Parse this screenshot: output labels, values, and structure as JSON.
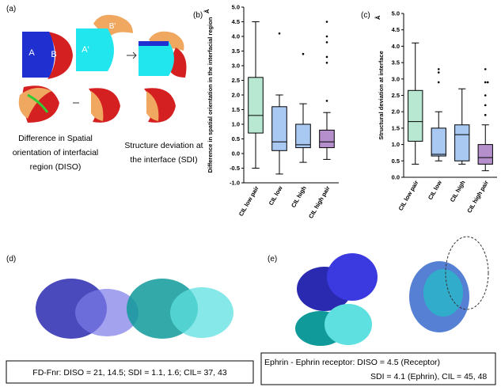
{
  "panel_labels": [
    "(a)",
    "(b)",
    "(c)",
    "(d)",
    "(e)"
  ],
  "panel_a": {
    "chain_labels": [
      "A",
      "B",
      "A'",
      "B'"
    ],
    "diso_caption": [
      "Difference in Spatial",
      "orientation of interfacial",
      "region (DISO)"
    ],
    "sdi_caption": [
      "Structure deviation at",
      "the interface (SDI)"
    ]
  },
  "panel_d": {
    "caption": "FD-Fnr: DISO = 21, 14.5; SDI = 1.1, 1.6; CIL= 37, 43"
  },
  "panel_e": {
    "caption": [
      "Ephrin - Ephrin receptor: DISO =  4.5 (Receptor)",
      "SDI = 4.1 (Ephrin), CIL = 45, 48"
    ]
  },
  "chart_data": [
    {
      "type": "box",
      "y_label": "Difference in spatial orientation in the interfacial region",
      "y_unit": "Å",
      "categories": [
        "CIL low pair",
        "CIL low",
        "CIL high",
        "CIL high pair"
      ],
      "colors": [
        "#b8e8d2",
        "#a9c8f2",
        "#a9c8f2",
        "#b48fcb"
      ],
      "boxes": [
        {
          "whislo": -0.5,
          "q1": 0.7,
          "med": 1.3,
          "q3": 2.6,
          "whishi": 4.5,
          "fliers": []
        },
        {
          "whislo": -0.7,
          "q1": 0.1,
          "med": 0.4,
          "q3": 1.6,
          "whishi": 2.0,
          "fliers": [
            4.1
          ]
        },
        {
          "whislo": -0.3,
          "q1": 0.2,
          "med": 0.3,
          "q3": 1.0,
          "whishi": 1.7,
          "fliers": [
            3.4
          ]
        },
        {
          "whislo": -0.2,
          "q1": 0.2,
          "med": 0.4,
          "q3": 0.8,
          "whishi": 1.4,
          "fliers": [
            1.8,
            3.1,
            3.3,
            3.8,
            4.0,
            4.5
          ]
        }
      ],
      "ylim": [
        -1.0,
        5.0
      ],
      "yticks": [
        {
          "value": 5,
          "label": "5.0"
        },
        4.5,
        {
          "value": 4,
          "label": "4.0"
        },
        3.5,
        {
          "value": 3,
          "label": "3.0"
        },
        2.5,
        {
          "value": 2,
          "label": "2.0"
        },
        1.5,
        {
          "value": 1,
          "label": "1.0"
        },
        0.5,
        {
          "value": 0,
          "label": "0.0"
        },
        -0.5,
        {
          "value": -1,
          "label": "-1.0"
        }
      ]
    },
    {
      "type": "box",
      "y_label": "Structural deviation at interface",
      "y_unit": "Å",
      "categories": [
        "CIL low pair",
        "CIL low",
        "CIL high",
        "CIL  high pair"
      ],
      "colors": [
        "#b8e8d2",
        "#a9c8f2",
        "#a9c8f2",
        "#b48fcb"
      ],
      "boxes": [
        {
          "whislo": 0.4,
          "q1": 1.1,
          "med": 1.7,
          "q3": 2.65,
          "whishi": 4.1,
          "fliers": []
        },
        {
          "whislo": 0.5,
          "q1": 0.65,
          "med": 0.7,
          "q3": 1.5,
          "whishi": 2.0,
          "fliers": [
            2.9,
            3.2,
            3.3
          ]
        },
        {
          "whislo": 0.4,
          "q1": 0.5,
          "med": 1.3,
          "q3": 1.6,
          "whishi": 2.7,
          "fliers": []
        },
        {
          "whislo": 0.2,
          "q1": 0.4,
          "med": 0.6,
          "q3": 1.0,
          "whishi": 1.6,
          "fliers": [
            1.9,
            2.2,
            2.5,
            2.9,
            2.9,
            3.3
          ]
        }
      ],
      "ylim": [
        0,
        5.0
      ],
      "yticks": [
        {
          "value": 5,
          "label": "5.0"
        },
        4.5,
        {
          "value": 4,
          "label": "4.0"
        },
        3.5,
        {
          "value": 3,
          "label": "3.0"
        },
        2.5,
        {
          "value": 2,
          "label": "2.0"
        },
        1.5,
        {
          "value": 1,
          "label": "1.0"
        },
        0.5,
        {
          "value": 0,
          "label": "0.0"
        }
      ]
    }
  ]
}
